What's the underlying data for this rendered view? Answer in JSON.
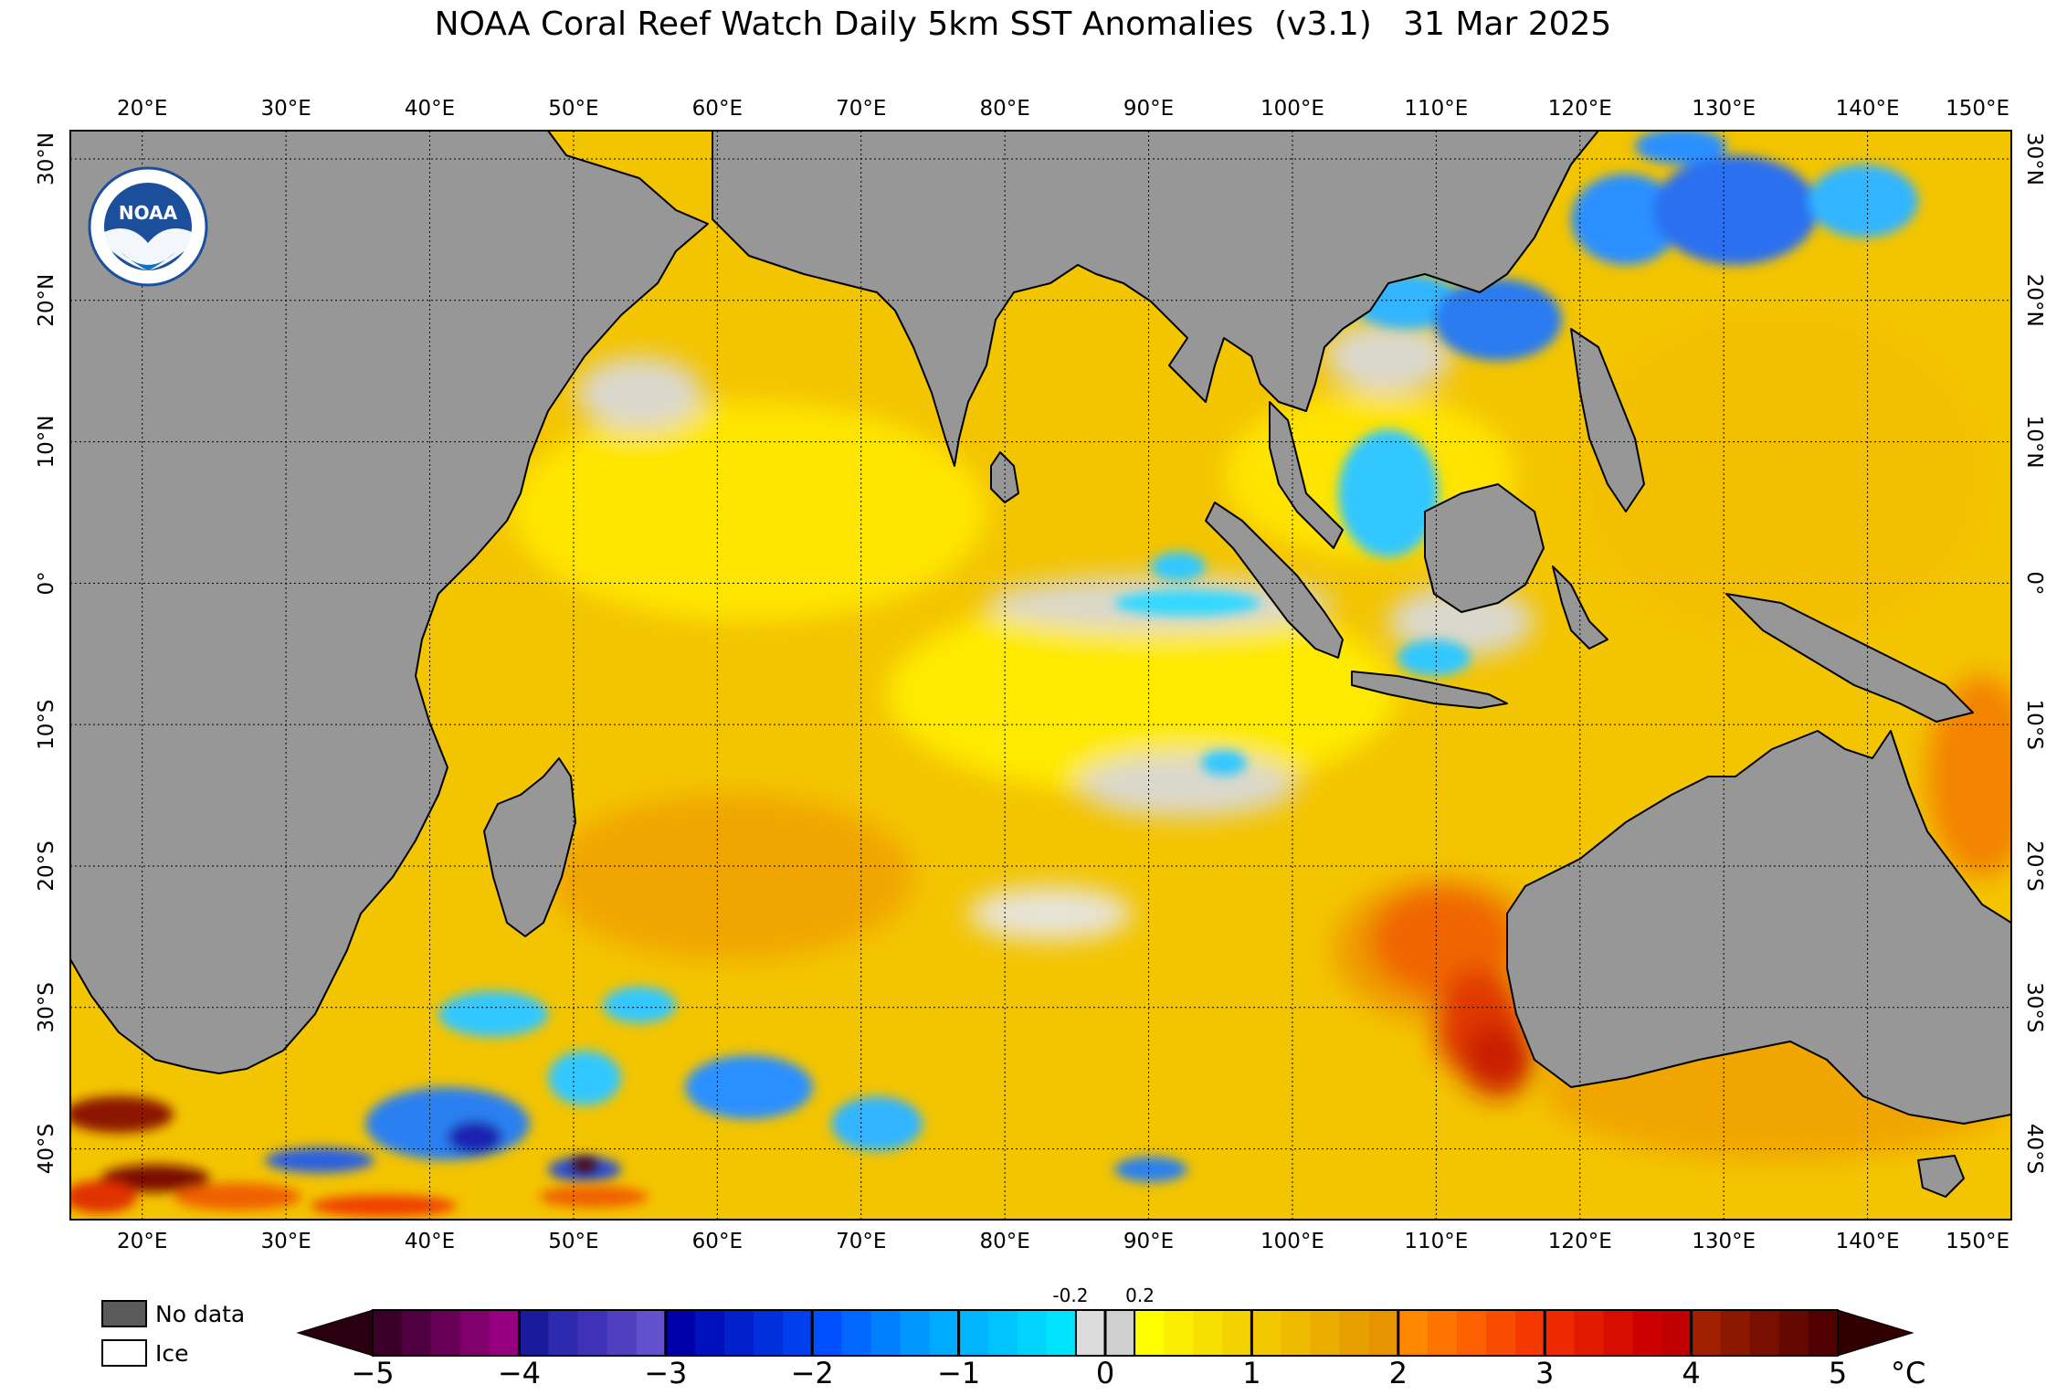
{
  "title": "NOAA Coral Reef Watch Daily 5km SST Anomalies  (v3.1)   31 Mar 2025",
  "logo": {
    "text": "NOAA",
    "ring_color": "#1b4f9c",
    "icon": "noaa-seagull-logo"
  },
  "map": {
    "extent": {
      "lon_min": 15,
      "lon_max": 150,
      "lat_min": -45,
      "lat_max": 32
    },
    "lon_ticks": [
      {
        "lon": 20,
        "label": "20°E"
      },
      {
        "lon": 30,
        "label": "30°E"
      },
      {
        "lon": 40,
        "label": "40°E"
      },
      {
        "lon": 50,
        "label": "50°E"
      },
      {
        "lon": 60,
        "label": "60°E"
      },
      {
        "lon": 70,
        "label": "70°E"
      },
      {
        "lon": 80,
        "label": "80°E"
      },
      {
        "lon": 90,
        "label": "90°E"
      },
      {
        "lon": 100,
        "label": "100°E"
      },
      {
        "lon": 110,
        "label": "110°E"
      },
      {
        "lon": 120,
        "label": "120°E"
      },
      {
        "lon": 130,
        "label": "130°E"
      },
      {
        "lon": 140,
        "label": "140°E"
      },
      {
        "lon": 150,
        "label": "150°E"
      }
    ],
    "lat_ticks": [
      {
        "lat": 30,
        "label": "30°N"
      },
      {
        "lat": 20,
        "label": "20°N"
      },
      {
        "lat": 10,
        "label": "10°N"
      },
      {
        "lat": 0,
        "label": "0°"
      },
      {
        "lat": -10,
        "label": "10°S"
      },
      {
        "lat": -20,
        "label": "20°S"
      },
      {
        "lat": -30,
        "label": "30°S"
      },
      {
        "lat": -40,
        "label": "40°S"
      }
    ],
    "colors": {
      "land": "#979797",
      "ocean_base": "#f3c400",
      "near_zero": "#d9d9d9",
      "coast": "#000000"
    }
  },
  "colorbar": {
    "unit": "°C",
    "tick_labels": [
      {
        "value": -5,
        "label": "−5"
      },
      {
        "value": -4,
        "label": "−4"
      },
      {
        "value": -3,
        "label": "−3"
      },
      {
        "value": -2,
        "label": "−2"
      },
      {
        "value": -1,
        "label": "−1"
      },
      {
        "value": 0,
        "label": "0"
      },
      {
        "value": 1,
        "label": "1"
      },
      {
        "value": 2,
        "label": "2"
      },
      {
        "value": 3,
        "label": "3"
      },
      {
        "value": 4,
        "label": "4"
      },
      {
        "value": 5,
        "label": "5"
      }
    ],
    "small_labels": [
      {
        "value": -0.2,
        "label": "-0.2"
      },
      {
        "value": 0.2,
        "label": "0.2"
      }
    ],
    "segments": [
      {
        "from": -5,
        "to": -4,
        "colors": [
          "#3a0028",
          "#500040",
          "#680058",
          "#80006c",
          "#960080"
        ]
      },
      {
        "from": -4,
        "to": -3,
        "colors": [
          "#1a1a9c",
          "#2e2ab0",
          "#4032b8",
          "#5040c0",
          "#6250cc"
        ]
      },
      {
        "from": -3,
        "to": -2,
        "colors": [
          "#0000a8",
          "#0010bc",
          "#0020cc",
          "#0030dc",
          "#0040ec"
        ]
      },
      {
        "from": -2,
        "to": -1,
        "colors": [
          "#0050ff",
          "#0068ff",
          "#0080ff",
          "#0096ff",
          "#00aaff"
        ]
      },
      {
        "from": -1,
        "to": -0.2,
        "colors": [
          "#00b4ff",
          "#00c4ff",
          "#00d4ff",
          "#00e4ff"
        ]
      },
      {
        "from": -0.2,
        "to": 0.2,
        "colors": [
          "#dcdcdc",
          "#cfcfcf"
        ]
      },
      {
        "from": 0.2,
        "to": 1,
        "colors": [
          "#ffff00",
          "#fbee00",
          "#f7e000",
          "#f3d200"
        ]
      },
      {
        "from": 1,
        "to": 2,
        "colors": [
          "#f2c800",
          "#efbb00",
          "#ebad00",
          "#e8a000",
          "#e69400"
        ]
      },
      {
        "from": 2,
        "to": 3,
        "colors": [
          "#ff8800",
          "#ff7400",
          "#fc6000",
          "#f84c00",
          "#f43800"
        ]
      },
      {
        "from": 3,
        "to": 4,
        "colors": [
          "#f02800",
          "#e41a00",
          "#d80c00",
          "#cc0000",
          "#c00000"
        ]
      },
      {
        "from": 4,
        "to": 5,
        "colors": [
          "#a02000",
          "#8c1800",
          "#781000",
          "#640800",
          "#500000"
        ]
      }
    ],
    "under_color": "#2a0010",
    "over_color": "#300000"
  },
  "legend": {
    "items": [
      {
        "label": "No data",
        "color": "#5a5a5a"
      },
      {
        "label": "Ice",
        "color": "#ffffff"
      }
    ]
  }
}
